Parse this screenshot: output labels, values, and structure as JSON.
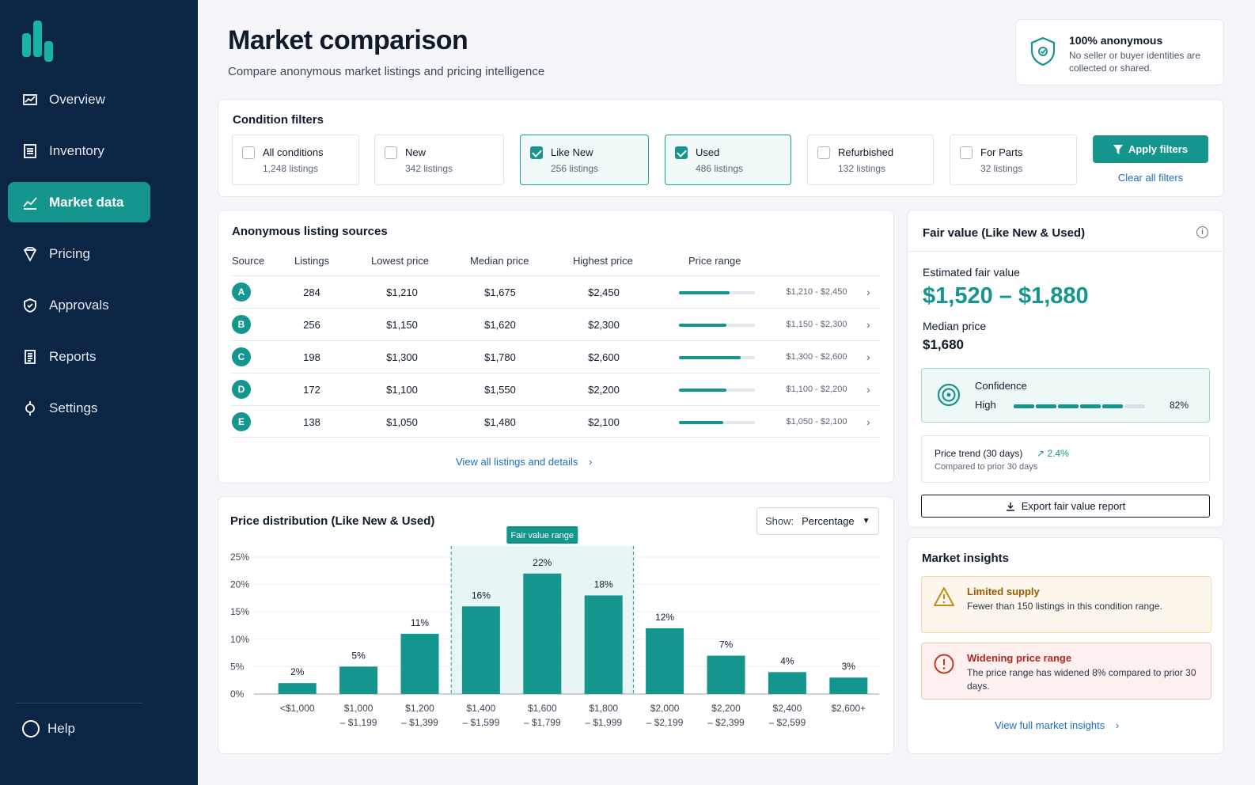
{
  "sidebar": {
    "items": [
      {
        "label": "Overview",
        "icon": "chart-icon"
      },
      {
        "label": "Inventory",
        "icon": "list-icon"
      },
      {
        "label": "Market data",
        "icon": "trend-icon",
        "active": true
      },
      {
        "label": "Pricing",
        "icon": "tag-icon"
      },
      {
        "label": "Approvals",
        "icon": "shield-check-icon"
      },
      {
        "label": "Reports",
        "icon": "report-icon"
      },
      {
        "label": "Settings",
        "icon": "gear-icon"
      }
    ],
    "help": "Help"
  },
  "header": {
    "title": "Market comparison",
    "subtitle": "Compare anonymous market listings and pricing intelligence"
  },
  "anon": {
    "title": "100% anonymous",
    "desc": "No seller or buyer identities are collected or shared."
  },
  "filters": {
    "title": "Condition filters",
    "items": [
      {
        "label": "All conditions",
        "count": "1,248 listings",
        "checked": false
      },
      {
        "label": "New",
        "count": "342 listings",
        "checked": false
      },
      {
        "label": "Like New",
        "count": "256 listings",
        "checked": true
      },
      {
        "label": "Used",
        "count": "486 listings",
        "checked": true
      },
      {
        "label": "Refurbished",
        "count": "132 listings",
        "checked": false
      },
      {
        "label": "For Parts",
        "count": "32 listings",
        "checked": false
      }
    ],
    "apply": "Apply filters",
    "clear": "Clear all filters"
  },
  "sources": {
    "title": "Anonymous listing sources",
    "headers": {
      "source": "Source",
      "listings": "Listings",
      "lowest": "Lowest price",
      "median": "Median price",
      "highest": "Highest price",
      "range": "Price range"
    },
    "rows": [
      {
        "source": "A",
        "listings": "284",
        "lowest": "$1,210",
        "median": "$1,675",
        "highest": "$2,450",
        "range": "$1,210 - $2,450",
        "fill": 0.67
      },
      {
        "source": "B",
        "listings": "256",
        "lowest": "$1,150",
        "median": "$1,620",
        "highest": "$2,300",
        "range": "$1,150 - $2,300",
        "fill": 0.63
      },
      {
        "source": "C",
        "listings": "198",
        "lowest": "$1,300",
        "median": "$1,780",
        "highest": "$2,600",
        "range": "$1,300 - $2,600",
        "fill": 0.81
      },
      {
        "source": "D",
        "listings": "172",
        "lowest": "$1,100",
        "median": "$1,550",
        "highest": "$2,200",
        "range": "$1,100 - $2,200",
        "fill": 0.62
      },
      {
        "source": "E",
        "listings": "138",
        "lowest": "$1,050",
        "median": "$1,480",
        "highest": "$2,100",
        "range": "$1,050 - $2,100",
        "fill": 0.58
      }
    ],
    "view_all": "View all listings and details"
  },
  "distribution": {
    "title": "Price distribution (Like New & Used)",
    "show_label": "Show:",
    "show_value": "Percentage"
  },
  "chart_data": {
    "type": "bar",
    "categories": [
      "<$1,000",
      "$1,000 – $1,199",
      "$1,200 – $1,399",
      "$1,400 – $1,599",
      "$1,600 – $1,799",
      "$1,800 – $1,999",
      "$2,000 – $2,199",
      "$2,200 – $2,399",
      "$2,400 – $2,599",
      "$2,600+"
    ],
    "category_lines": [
      [
        "<$1,000",
        ""
      ],
      [
        "$1,000",
        "– $1,199"
      ],
      [
        "$1,200",
        "– $1,399"
      ],
      [
        "$1,400",
        "– $1,599"
      ],
      [
        "$1,600",
        "– $1,799"
      ],
      [
        "$1,800",
        "– $1,999"
      ],
      [
        "$2,000",
        "– $2,199"
      ],
      [
        "$2,200",
        "– $2,399"
      ],
      [
        "$2,400",
        "– $2,599"
      ],
      [
        "$2,600+",
        ""
      ]
    ],
    "values": [
      2,
      5,
      11,
      16,
      22,
      18,
      12,
      7,
      4,
      3
    ],
    "value_labels": [
      "2%",
      "5%",
      "11%",
      "16%",
      "22%",
      "18%",
      "12%",
      "7%",
      "4%",
      "3%"
    ],
    "y_ticks": [
      "0%",
      "5%",
      "10%",
      "15%",
      "20%",
      "25%"
    ],
    "ylim": [
      0,
      25
    ],
    "grid": true,
    "annotation": {
      "label": "Fair value range",
      "from_index": 3,
      "to_index": 5
    },
    "bar_color": "#14968e"
  },
  "fair": {
    "title": "Fair value (Like New & Used)",
    "estimated_label": "Estimated fair value",
    "estimated": "$1,520 – $1,880",
    "median_label": "Median price",
    "median": "$1,680",
    "confidence_label": "Confidence",
    "confidence_value": "High",
    "confidence_pct": "82%",
    "confidence_filled": 5,
    "confidence_total": 6,
    "trend_label": "Price trend (30 days)",
    "trend_value": "2.4%",
    "trend_compare": "Compared to prior 30 days",
    "export": "Export fair value report"
  },
  "insights": {
    "title": "Market insights",
    "items": [
      {
        "title": "Limited supply",
        "desc": "Fewer than 150 listings in this condition range."
      },
      {
        "title": "Widening price range",
        "desc": "The price range has widened 8% compared to prior 30 days."
      }
    ],
    "link": "View full market insights"
  },
  "colors": {
    "accent": "#14968e",
    "sidebar": "#0b2545",
    "link": "#1b6ec2",
    "warn": "#9a5b00",
    "error": "#b3261e"
  }
}
